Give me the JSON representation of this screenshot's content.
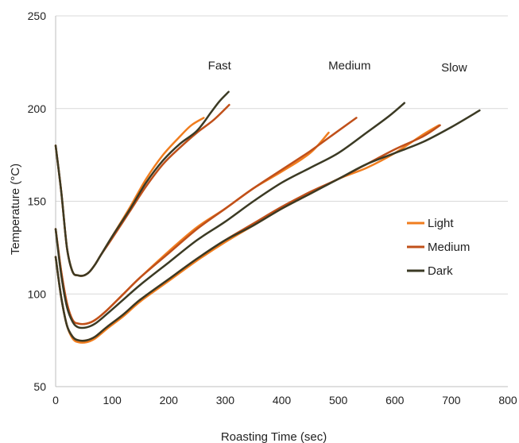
{
  "chart_data": {
    "type": "line",
    "title": "",
    "xlabel": "Roasting Time (sec)",
    "ylabel": "Temperature (°C)",
    "xlim": [
      0,
      800
    ],
    "ylim": [
      50,
      250
    ],
    "xticks": [
      0,
      100,
      200,
      300,
      400,
      500,
      600,
      700,
      800
    ],
    "yticks": [
      50,
      100,
      150,
      200,
      250
    ],
    "grid": "horizontal",
    "legend_position": "right",
    "annotations": [
      {
        "text": "Fast",
        "x": 290,
        "y": 221
      },
      {
        "text": "Medium",
        "x": 520,
        "y": 221
      },
      {
        "text": "Slow",
        "x": 705,
        "y": 220
      }
    ],
    "colors": {
      "Light": "#f07d1e",
      "Medium": "#c0501a",
      "Dark": "#3b3a24",
      "grid": "#d9d9d9",
      "axis": "#bfbfbf"
    },
    "series": [
      {
        "name": "Light",
        "group": "Fast",
        "points": [
          [
            0,
            180
          ],
          [
            10,
            155
          ],
          [
            20,
            125
          ],
          [
            30,
            112
          ],
          [
            40,
            110
          ],
          [
            50,
            110
          ],
          [
            60,
            112
          ],
          [
            70,
            116
          ],
          [
            80,
            121
          ],
          [
            100,
            131
          ],
          [
            130,
            146
          ],
          [
            160,
            162
          ],
          [
            190,
            175
          ],
          [
            220,
            185
          ],
          [
            240,
            191
          ],
          [
            262,
            195
          ]
        ]
      },
      {
        "name": "Medium",
        "group": "Fast",
        "points": [
          [
            0,
            180
          ],
          [
            10,
            155
          ],
          [
            20,
            125
          ],
          [
            30,
            112
          ],
          [
            40,
            110
          ],
          [
            50,
            110
          ],
          [
            60,
            112
          ],
          [
            70,
            116
          ],
          [
            80,
            121
          ],
          [
            100,
            130
          ],
          [
            130,
            144
          ],
          [
            160,
            158
          ],
          [
            190,
            170
          ],
          [
            220,
            179
          ],
          [
            250,
            187
          ],
          [
            280,
            194
          ],
          [
            307,
            202
          ]
        ]
      },
      {
        "name": "Dark",
        "group": "Fast",
        "points": [
          [
            0,
            180
          ],
          [
            10,
            155
          ],
          [
            20,
            125
          ],
          [
            30,
            112
          ],
          [
            40,
            110
          ],
          [
            50,
            110
          ],
          [
            60,
            112
          ],
          [
            70,
            116
          ],
          [
            80,
            121
          ],
          [
            100,
            131
          ],
          [
            130,
            145
          ],
          [
            160,
            160
          ],
          [
            190,
            172
          ],
          [
            220,
            181
          ],
          [
            250,
            188
          ],
          [
            275,
            198
          ],
          [
            290,
            204
          ],
          [
            306,
            209
          ]
        ]
      },
      {
        "name": "Light",
        "group": "Medium",
        "points": [
          [
            0,
            135
          ],
          [
            10,
            112
          ],
          [
            20,
            95
          ],
          [
            30,
            86
          ],
          [
            40,
            84
          ],
          [
            55,
            84
          ],
          [
            70,
            86
          ],
          [
            90,
            91
          ],
          [
            120,
            100
          ],
          [
            150,
            109
          ],
          [
            200,
            123
          ],
          [
            250,
            136
          ],
          [
            300,
            146
          ],
          [
            350,
            157
          ],
          [
            400,
            166
          ],
          [
            450,
            176
          ],
          [
            483,
            187
          ]
        ]
      },
      {
        "name": "Medium",
        "group": "Medium",
        "points": [
          [
            0,
            135
          ],
          [
            10,
            112
          ],
          [
            20,
            95
          ],
          [
            30,
            86
          ],
          [
            40,
            84
          ],
          [
            55,
            84
          ],
          [
            70,
            86
          ],
          [
            90,
            91
          ],
          [
            120,
            100
          ],
          [
            150,
            109
          ],
          [
            200,
            122
          ],
          [
            250,
            135
          ],
          [
            300,
            146
          ],
          [
            350,
            157
          ],
          [
            400,
            167
          ],
          [
            450,
            177
          ],
          [
            500,
            188
          ],
          [
            532,
            195
          ]
        ]
      },
      {
        "name": "Dark",
        "group": "Medium",
        "points": [
          [
            0,
            135
          ],
          [
            10,
            110
          ],
          [
            20,
            93
          ],
          [
            30,
            85
          ],
          [
            40,
            82
          ],
          [
            55,
            82
          ],
          [
            70,
            84
          ],
          [
            90,
            89
          ],
          [
            120,
            97
          ],
          [
            150,
            105
          ],
          [
            200,
            117
          ],
          [
            250,
            129
          ],
          [
            300,
            139
          ],
          [
            350,
            150
          ],
          [
            400,
            160
          ],
          [
            450,
            168
          ],
          [
            500,
            176
          ],
          [
            550,
            187
          ],
          [
            590,
            196
          ],
          [
            617,
            203
          ]
        ]
      },
      {
        "name": "Light",
        "group": "Slow",
        "points": [
          [
            0,
            120
          ],
          [
            10,
            98
          ],
          [
            20,
            83
          ],
          [
            30,
            76
          ],
          [
            40,
            74
          ],
          [
            55,
            74
          ],
          [
            70,
            76
          ],
          [
            90,
            81
          ],
          [
            120,
            88
          ],
          [
            150,
            96
          ],
          [
            200,
            107
          ],
          [
            250,
            118
          ],
          [
            300,
            128
          ],
          [
            350,
            137
          ],
          [
            400,
            146
          ],
          [
            450,
            154
          ],
          [
            500,
            162
          ],
          [
            550,
            168
          ],
          [
            600,
            176
          ],
          [
            650,
            186
          ],
          [
            678,
            191
          ]
        ]
      },
      {
        "name": "Medium",
        "group": "Slow",
        "points": [
          [
            0,
            120
          ],
          [
            10,
            98
          ],
          [
            20,
            83
          ],
          [
            30,
            77
          ],
          [
            40,
            75
          ],
          [
            55,
            75
          ],
          [
            70,
            77
          ],
          [
            90,
            82
          ],
          [
            120,
            89
          ],
          [
            150,
            97
          ],
          [
            200,
            108
          ],
          [
            250,
            119
          ],
          [
            300,
            129
          ],
          [
            350,
            138
          ],
          [
            400,
            147
          ],
          [
            450,
            155
          ],
          [
            500,
            162
          ],
          [
            550,
            170
          ],
          [
            600,
            178
          ],
          [
            650,
            185
          ],
          [
            680,
            191
          ]
        ]
      },
      {
        "name": "Dark",
        "group": "Slow",
        "points": [
          [
            0,
            120
          ],
          [
            10,
            98
          ],
          [
            20,
            83
          ],
          [
            30,
            77
          ],
          [
            40,
            75
          ],
          [
            55,
            75
          ],
          [
            70,
            77
          ],
          [
            90,
            82
          ],
          [
            120,
            89
          ],
          [
            150,
            97
          ],
          [
            200,
            108
          ],
          [
            250,
            119
          ],
          [
            300,
            129
          ],
          [
            350,
            137
          ],
          [
            400,
            146
          ],
          [
            450,
            154
          ],
          [
            500,
            162
          ],
          [
            550,
            170
          ],
          [
            600,
            176
          ],
          [
            650,
            182
          ],
          [
            700,
            190
          ],
          [
            750,
            199
          ]
        ]
      }
    ],
    "legend": [
      "Light",
      "Medium",
      "Dark"
    ]
  }
}
